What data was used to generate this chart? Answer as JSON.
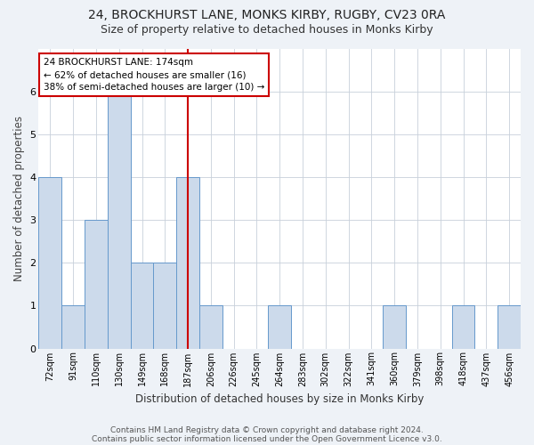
{
  "title1": "24, BROCKHURST LANE, MONKS KIRBY, RUGBY, CV23 0RA",
  "title2": "Size of property relative to detached houses in Monks Kirby",
  "xlabel": "Distribution of detached houses by size in Monks Kirby",
  "ylabel": "Number of detached properties",
  "categories": [
    "72sqm",
    "91sqm",
    "110sqm",
    "130sqm",
    "149sqm",
    "168sqm",
    "187sqm",
    "206sqm",
    "226sqm",
    "245sqm",
    "264sqm",
    "283sqm",
    "302sqm",
    "322sqm",
    "341sqm",
    "360sqm",
    "379sqm",
    "398sqm",
    "418sqm",
    "437sqm",
    "456sqm"
  ],
  "bar_values": [
    4,
    1,
    3,
    6,
    2,
    2,
    4,
    1,
    0,
    0,
    1,
    0,
    0,
    0,
    0,
    1,
    0,
    0,
    1,
    0,
    1
  ],
  "bar_color": "#ccdaeb",
  "bar_edge_color": "#6699cc",
  "red_line_index": 6,
  "annotation_lines": [
    "24 BROCKHURST LANE: 174sqm",
    "← 62% of detached houses are smaller (16)",
    "38% of semi-detached houses are larger (10) →"
  ],
  "ylim": [
    0,
    7
  ],
  "yticks": [
    0,
    1,
    2,
    3,
    4,
    5,
    6,
    7
  ],
  "footer1": "Contains HM Land Registry data © Crown copyright and database right 2024.",
  "footer2": "Contains public sector information licensed under the Open Government Licence v3.0.",
  "background_color": "#eef2f7",
  "plot_bg_color": "#ffffff",
  "grid_color": "#c8d0da",
  "title1_fontsize": 10,
  "title2_fontsize": 9,
  "annotation_box_color": "#ffffff",
  "annotation_box_edge": "#cc0000",
  "footer_fontsize": 6.5
}
